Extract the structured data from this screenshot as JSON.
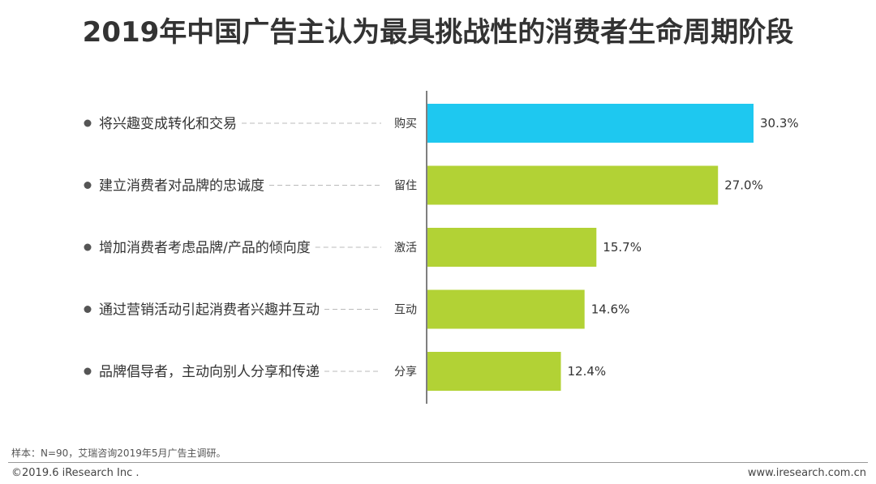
{
  "title": "2019年中国广告主认为最具挑战性的消费者生命周期阶段",
  "footnote": "样本：N=90，艾瑞咨询2019年5月广告主调研。",
  "copyright": "©2019.6 iResearch Inc .",
  "website": "www.iresearch.com.cn",
  "colors": {
    "highlight": "#1ec8f0",
    "bar": "#b2d235",
    "axis": "#555555",
    "leader": "#bbbbbb",
    "bullet": "#555555"
  },
  "chart_data": {
    "type": "bar",
    "orientation": "horizontal",
    "categories": [
      "购买",
      "留住",
      "激活",
      "互动",
      "分享"
    ],
    "descriptions": [
      "将兴趣变成转化和交易",
      "建立消费者对品牌的忠诚度",
      "增加消费者考虑品牌/产品的倾向度",
      "通过营销活动引起消费者兴趣并互动",
      "品牌倡导者，主动向别人分享和传递"
    ],
    "values": [
      30.3,
      27.0,
      15.7,
      14.6,
      12.4
    ],
    "value_labels": [
      "30.3%",
      "27.0%",
      "15.7%",
      "14.6%",
      "12.4%"
    ],
    "unit": "%",
    "highlight_index": 0,
    "xlim": [
      0,
      35
    ],
    "grid": false,
    "legend": "none"
  }
}
